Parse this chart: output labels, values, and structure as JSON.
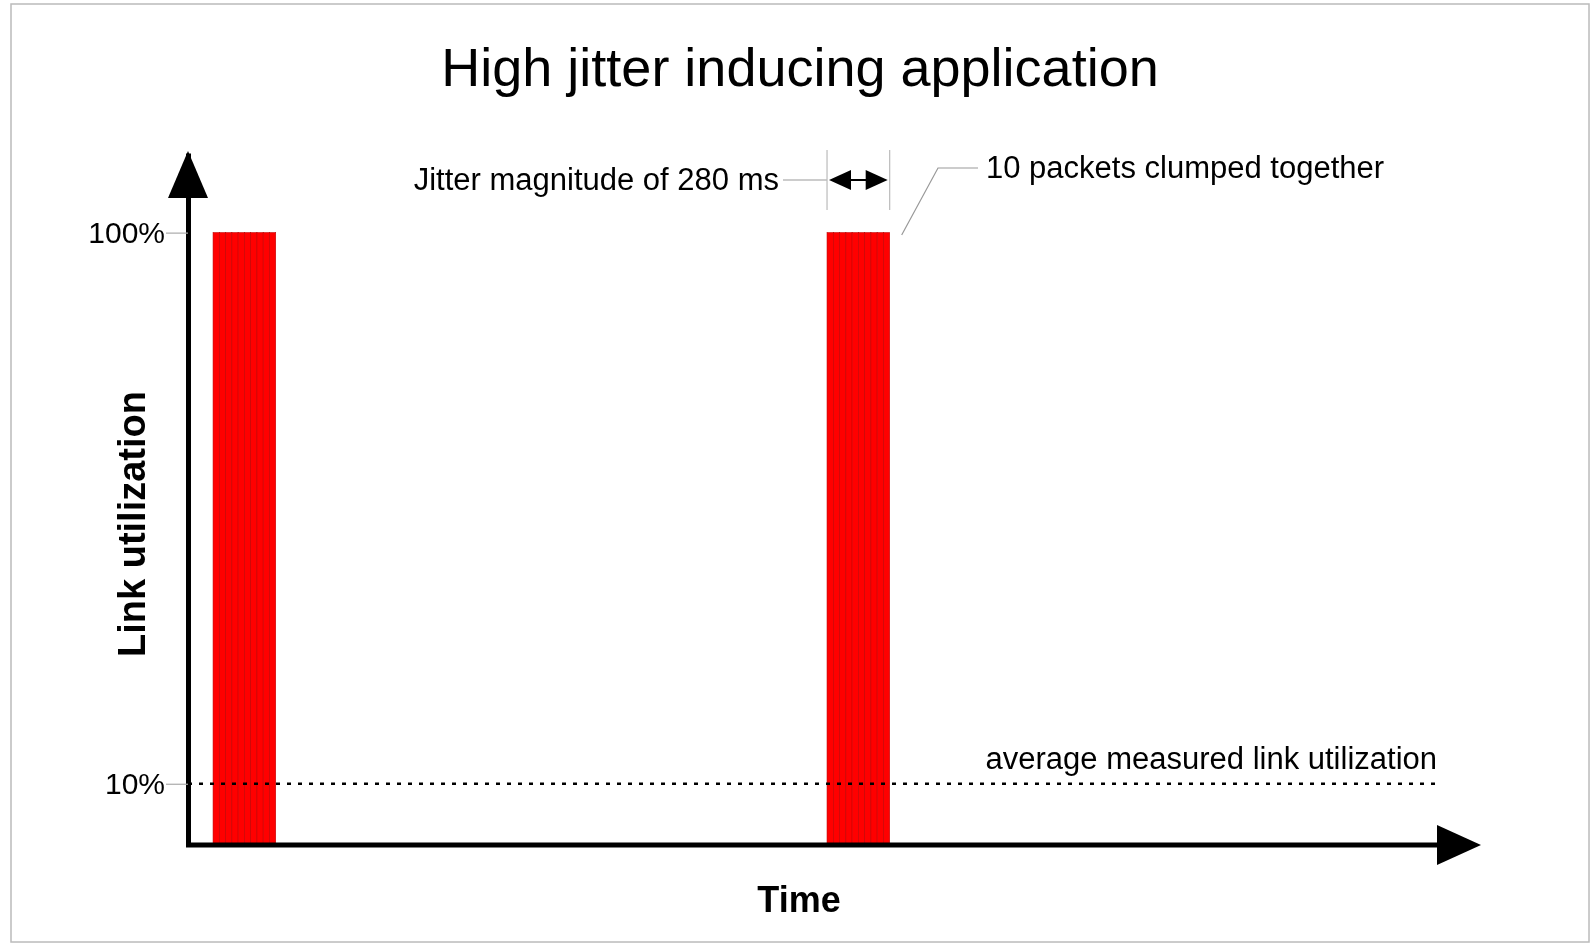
{
  "chart_data": {
    "type": "bar",
    "title": "High jitter inducing application",
    "xlabel": "Time",
    "ylabel": "Link utilization",
    "categories": [
      null,
      null,
      null,
      null,
      null,
      null,
      null,
      null,
      null,
      null,
      null,
      null,
      null,
      null,
      null,
      null,
      null,
      null,
      null,
      null,
      null,
      null,
      null,
      null,
      null,
      null,
      null,
      null,
      null,
      null,
      null,
      null,
      null,
      null,
      null,
      null,
      null,
      null,
      null,
      null,
      null,
      null,
      null,
      null,
      null,
      null,
      null,
      null,
      null,
      null,
      null,
      null,
      null,
      null,
      null,
      null,
      null,
      null,
      null,
      null,
      null,
      null,
      null,
      null,
      null,
      null,
      null,
      null,
      null,
      null,
      null,
      null,
      null,
      null,
      null,
      null,
      null,
      null,
      null,
      null,
      null,
      null,
      null,
      null,
      null,
      null,
      null,
      null,
      null,
      null,
      null,
      null,
      null,
      null,
      null,
      null,
      null,
      null,
      null,
      null,
      null,
      null,
      null,
      null,
      null,
      null,
      null,
      null,
      null,
      null,
      null,
      null,
      null,
      null,
      null,
      null,
      null,
      null,
      null,
      null,
      null,
      null,
      null,
      null,
      null,
      null,
      null,
      null,
      null,
      null,
      null,
      null,
      null,
      null,
      null,
      null,
      null,
      null,
      null,
      null,
      null,
      null,
      null,
      null,
      null,
      null,
      null,
      null,
      null,
      null,
      null,
      null,
      null,
      null,
      null,
      null,
      null,
      null,
      null,
      null,
      null,
      null,
      null,
      null,
      null,
      null,
      null,
      null,
      null,
      null,
      null,
      null,
      null,
      null,
      null,
      null,
      null,
      null,
      null,
      null,
      null,
      null,
      null,
      null,
      null,
      null,
      null,
      null,
      null,
      null,
      null,
      null,
      null,
      null,
      null,
      null,
      null,
      null,
      null,
      null
    ],
    "values": [
      null,
      null,
      null,
      null,
      100,
      100,
      100,
      100,
      100,
      100,
      100,
      100,
      100,
      100,
      null,
      null,
      null,
      null,
      null,
      null,
      null,
      null,
      null,
      null,
      null,
      null,
      null,
      null,
      null,
      null,
      null,
      null,
      null,
      null,
      null,
      null,
      null,
      null,
      null,
      null,
      null,
      null,
      null,
      null,
      null,
      null,
      null,
      null,
      null,
      null,
      null,
      null,
      null,
      null,
      null,
      null,
      null,
      null,
      null,
      null,
      null,
      null,
      null,
      null,
      null,
      null,
      null,
      null,
      null,
      null,
      null,
      null,
      null,
      null,
      null,
      null,
      null,
      null,
      null,
      null,
      null,
      null,
      null,
      null,
      null,
      null,
      null,
      null,
      null,
      null,
      null,
      null,
      null,
      null,
      null,
      null,
      null,
      null,
      null,
      null,
      null,
      null,
      100,
      100,
      100,
      100,
      100,
      100,
      100,
      100,
      100,
      100,
      null,
      null,
      null,
      null,
      null,
      null,
      null,
      null,
      null,
      null,
      null,
      null,
      null,
      null,
      null,
      null,
      null,
      null,
      null,
      null,
      null,
      null,
      null,
      null,
      null,
      null,
      null,
      null,
      null,
      null,
      null,
      null,
      null,
      null,
      null,
      null,
      null,
      null,
      null,
      null,
      null,
      null,
      null,
      null,
      null,
      null,
      null,
      null,
      null,
      null,
      null,
      null,
      null,
      null,
      null,
      null,
      null,
      null,
      null,
      null,
      null,
      null,
      null,
      null,
      null,
      null,
      null,
      null,
      null,
      null,
      null,
      null,
      null,
      null,
      null,
      null,
      null,
      null,
      null,
      null,
      null,
      null,
      null,
      null,
      null,
      null,
      null,
      null
    ],
    "color": "#ff0000",
    "ylim": [
      0,
      113
    ],
    "yticks": [
      {
        "value": 10,
        "label": "10%"
      },
      {
        "value": 100,
        "label": "100%"
      }
    ],
    "tick_labels": "y",
    "ref_lines": [
      {
        "axis": "y",
        "value": 10,
        "label": "average measured link utilization",
        "line_style": "dotted",
        "color": "#000000"
      }
    ],
    "annotations": [
      "Jitter magnitude of 280 ms",
      "10 packets clumped together"
    ]
  }
}
